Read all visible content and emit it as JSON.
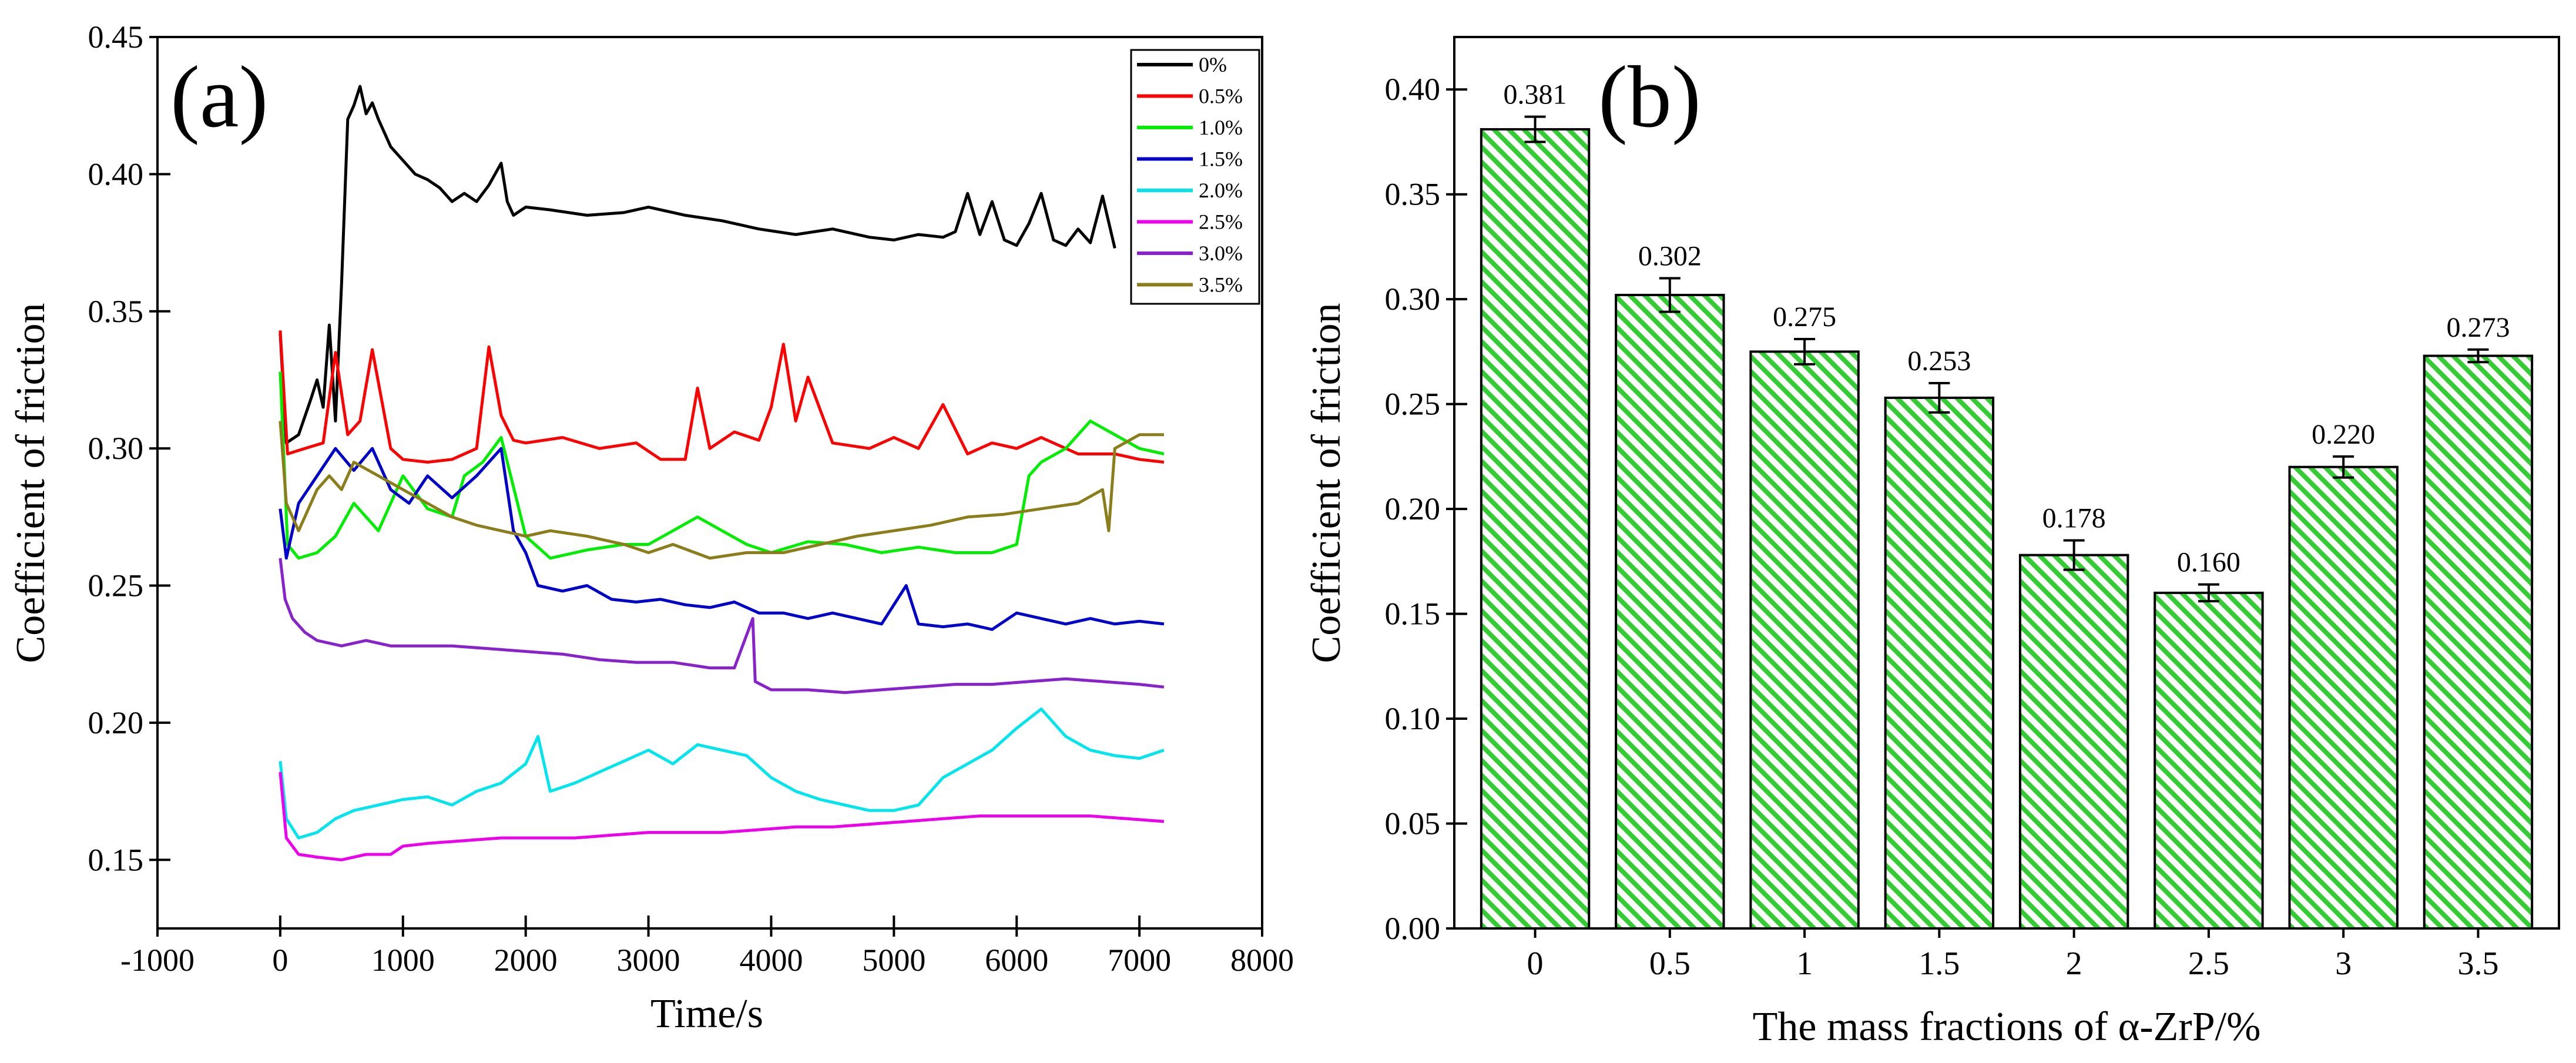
{
  "chart_data": [
    {
      "type": "line",
      "panel_label": "(a)",
      "xlabel": "Time/s",
      "ylabel": "Coefficient of friction",
      "xlim": [
        -1000,
        8000
      ],
      "ylim": [
        0.125,
        0.45
      ],
      "xticks": [
        -1000,
        0,
        1000,
        2000,
        3000,
        4000,
        5000,
        6000,
        7000,
        8000
      ],
      "xtick_labels": [
        "-1000",
        "0",
        "1000",
        "2000",
        "3000",
        "4000",
        "5000",
        "6000",
        "7000",
        "8000"
      ],
      "yticks": [
        0.15,
        0.2,
        0.25,
        0.3,
        0.35,
        0.4,
        0.45
      ],
      "ytick_labels": [
        "0.15",
        "0.20",
        "0.25",
        "0.30",
        "0.35",
        "0.40",
        "0.45"
      ],
      "legend_position": "top-right",
      "series": [
        {
          "name": "0%",
          "color": "#000000",
          "x": [
            0,
            50,
            150,
            250,
            300,
            350,
            400,
            450,
            500,
            550,
            600,
            650,
            700,
            750,
            800,
            900,
            1000,
            1100,
            1200,
            1300,
            1400,
            1500,
            1600,
            1700,
            1800,
            1850,
            1900,
            2000,
            2200,
            2500,
            2800,
            3000,
            3300,
            3600,
            3900,
            4200,
            4500,
            4800,
            5000,
            5200,
            5400,
            5500,
            5600,
            5700,
            5800,
            5900,
            6000,
            6100,
            6200,
            6300,
            6400,
            6500,
            6600,
            6700,
            6800
          ],
          "y": [
            0.342,
            0.302,
            0.305,
            0.318,
            0.325,
            0.315,
            0.345,
            0.31,
            0.36,
            0.42,
            0.425,
            0.432,
            0.422,
            0.426,
            0.42,
            0.41,
            0.405,
            0.4,
            0.398,
            0.395,
            0.39,
            0.393,
            0.39,
            0.396,
            0.404,
            0.39,
            0.385,
            0.388,
            0.387,
            0.385,
            0.386,
            0.388,
            0.385,
            0.383,
            0.38,
            0.378,
            0.38,
            0.377,
            0.376,
            0.378,
            0.377,
            0.379,
            0.393,
            0.378,
            0.39,
            0.376,
            0.374,
            0.382,
            0.393,
            0.376,
            0.374,
            0.38,
            0.375,
            0.392,
            0.373
          ]
        },
        {
          "name": "0.5%",
          "color": "#ff0000",
          "x": [
            0,
            60,
            200,
            350,
            450,
            550,
            650,
            750,
            900,
            1000,
            1200,
            1400,
            1600,
            1700,
            1800,
            1900,
            2000,
            2300,
            2600,
            2900,
            3100,
            3300,
            3400,
            3500,
            3700,
            3900,
            4000,
            4100,
            4200,
            4300,
            4500,
            4800,
            5000,
            5200,
            5400,
            5600,
            5800,
            6000,
            6200,
            6500,
            6800,
            7000,
            7200
          ],
          "y": [
            0.343,
            0.298,
            0.3,
            0.302,
            0.335,
            0.305,
            0.31,
            0.336,
            0.3,
            0.296,
            0.295,
            0.296,
            0.3,
            0.337,
            0.312,
            0.303,
            0.302,
            0.304,
            0.3,
            0.302,
            0.296,
            0.296,
            0.322,
            0.3,
            0.306,
            0.303,
            0.315,
            0.338,
            0.31,
            0.326,
            0.302,
            0.3,
            0.304,
            0.3,
            0.316,
            0.298,
            0.302,
            0.3,
            0.304,
            0.298,
            0.298,
            0.296,
            0.295
          ]
        },
        {
          "name": "1.0%",
          "color": "#00ee00",
          "x": [
            0,
            60,
            150,
            300,
            450,
            600,
            800,
            1000,
            1200,
            1400,
            1500,
            1650,
            1800,
            2000,
            2200,
            2500,
            2800,
            3000,
            3200,
            3400,
            3600,
            3800,
            4000,
            4300,
            4600,
            4900,
            5200,
            5500,
            5800,
            6000,
            6100,
            6200,
            6400,
            6600,
            6800,
            7000,
            7200
          ],
          "y": [
            0.328,
            0.265,
            0.26,
            0.262,
            0.268,
            0.28,
            0.27,
            0.29,
            0.278,
            0.275,
            0.29,
            0.295,
            0.304,
            0.268,
            0.26,
            0.263,
            0.265,
            0.265,
            0.27,
            0.275,
            0.27,
            0.265,
            0.262,
            0.266,
            0.265,
            0.262,
            0.264,
            0.262,
            0.262,
            0.265,
            0.29,
            0.295,
            0.3,
            0.31,
            0.305,
            0.3,
            0.298
          ]
        },
        {
          "name": "1.5%",
          "color": "#0000cc",
          "x": [
            0,
            50,
            150,
            300,
            450,
            600,
            750,
            900,
            1050,
            1200,
            1400,
            1600,
            1800,
            1900,
            2000,
            2100,
            2300,
            2500,
            2700,
            2900,
            3100,
            3300,
            3500,
            3700,
            3900,
            4100,
            4300,
            4500,
            4700,
            4900,
            5100,
            5200,
            5400,
            5600,
            5800,
            6000,
            6200,
            6400,
            6600,
            6800,
            7000,
            7200
          ],
          "y": [
            0.278,
            0.26,
            0.28,
            0.29,
            0.3,
            0.292,
            0.3,
            0.285,
            0.28,
            0.29,
            0.282,
            0.29,
            0.3,
            0.27,
            0.262,
            0.25,
            0.248,
            0.25,
            0.245,
            0.244,
            0.245,
            0.243,
            0.242,
            0.244,
            0.24,
            0.24,
            0.238,
            0.24,
            0.238,
            0.236,
            0.25,
            0.236,
            0.235,
            0.236,
            0.234,
            0.24,
            0.238,
            0.236,
            0.238,
            0.236,
            0.237,
            0.236
          ]
        },
        {
          "name": "2.0%",
          "color": "#00e5ee",
          "x": [
            0,
            50,
            150,
            300,
            450,
            600,
            800,
            1000,
            1200,
            1400,
            1600,
            1800,
            2000,
            2100,
            2200,
            2400,
            2600,
            2800,
            3000,
            3200,
            3400,
            3600,
            3800,
            4000,
            4200,
            4400,
            4600,
            4800,
            5000,
            5200,
            5400,
            5600,
            5800,
            6000,
            6200,
            6400,
            6600,
            6800,
            7000,
            7200
          ],
          "y": [
            0.186,
            0.165,
            0.158,
            0.16,
            0.165,
            0.168,
            0.17,
            0.172,
            0.173,
            0.17,
            0.175,
            0.178,
            0.185,
            0.195,
            0.175,
            0.178,
            0.182,
            0.186,
            0.19,
            0.185,
            0.192,
            0.19,
            0.188,
            0.18,
            0.175,
            0.172,
            0.17,
            0.168,
            0.168,
            0.17,
            0.18,
            0.185,
            0.19,
            0.198,
            0.205,
            0.195,
            0.19,
            0.188,
            0.187,
            0.19
          ]
        },
        {
          "name": "2.5%",
          "color": "#ee00ee",
          "x": [
            0,
            50,
            150,
            300,
            500,
            700,
            900,
            1000,
            1200,
            1500,
            1800,
            2100,
            2400,
            2700,
            3000,
            3300,
            3600,
            3900,
            4200,
            4500,
            4800,
            5100,
            5400,
            5700,
            6000,
            6300,
            6600,
            6900,
            7200
          ],
          "y": [
            0.182,
            0.158,
            0.152,
            0.151,
            0.15,
            0.152,
            0.152,
            0.155,
            0.156,
            0.157,
            0.158,
            0.158,
            0.158,
            0.159,
            0.16,
            0.16,
            0.16,
            0.161,
            0.162,
            0.162,
            0.163,
            0.164,
            0.165,
            0.166,
            0.166,
            0.166,
            0.166,
            0.165,
            0.164
          ]
        },
        {
          "name": "3.0%",
          "color": "#8822cc",
          "x": [
            0,
            40,
            100,
            200,
            300,
            500,
            700,
            900,
            1100,
            1400,
            1700,
            2000,
            2300,
            2600,
            2900,
            3200,
            3500,
            3700,
            3850,
            3870,
            4000,
            4300,
            4600,
            4900,
            5200,
            5500,
            5800,
            6100,
            6400,
            6700,
            7000,
            7200
          ],
          "y": [
            0.26,
            0.245,
            0.238,
            0.233,
            0.23,
            0.228,
            0.23,
            0.228,
            0.228,
            0.228,
            0.227,
            0.226,
            0.225,
            0.223,
            0.222,
            0.222,
            0.22,
            0.22,
            0.238,
            0.215,
            0.212,
            0.212,
            0.211,
            0.212,
            0.213,
            0.214,
            0.214,
            0.215,
            0.216,
            0.215,
            0.214,
            0.213
          ]
        },
        {
          "name": "3.5%",
          "color": "#8b7d1a",
          "x": [
            0,
            50,
            150,
            300,
            400,
            500,
            600,
            800,
            1000,
            1200,
            1400,
            1600,
            1800,
            2000,
            2200,
            2500,
            2800,
            3000,
            3200,
            3500,
            3800,
            4100,
            4400,
            4700,
            5000,
            5300,
            5600,
            5900,
            6200,
            6500,
            6700,
            6750,
            6800,
            7000,
            7200
          ],
          "y": [
            0.31,
            0.28,
            0.27,
            0.285,
            0.29,
            0.285,
            0.295,
            0.29,
            0.285,
            0.28,
            0.275,
            0.272,
            0.27,
            0.268,
            0.27,
            0.268,
            0.265,
            0.262,
            0.265,
            0.26,
            0.262,
            0.262,
            0.265,
            0.268,
            0.27,
            0.272,
            0.275,
            0.276,
            0.278,
            0.28,
            0.285,
            0.27,
            0.3,
            0.305,
            0.305
          ]
        }
      ]
    },
    {
      "type": "bar",
      "panel_label": "(b)",
      "xlabel": "The mass fractions of α-ZrP/%",
      "ylabel": "Coefficient of friction",
      "categories": [
        "0",
        "0.5",
        "1",
        "1.5",
        "2",
        "2.5",
        "3",
        "3.5"
      ],
      "values": [
        0.381,
        0.302,
        0.275,
        0.253,
        0.178,
        0.16,
        0.22,
        0.273
      ],
      "value_labels": [
        "0.381",
        "0.302",
        "0.275",
        "0.253",
        "0.178",
        "0.160",
        "0.220",
        "0.273"
      ],
      "errors": [
        0.006,
        0.008,
        0.006,
        0.007,
        0.007,
        0.004,
        0.005,
        0.003
      ],
      "ylim": [
        0,
        0.425
      ],
      "yticks": [
        0,
        0.05,
        0.1,
        0.15,
        0.2,
        0.25,
        0.3,
        0.35,
        0.4
      ],
      "ytick_labels": [
        "0.00",
        "0.05",
        "0.10",
        "0.15",
        "0.20",
        "0.25",
        "0.30",
        "0.35",
        "0.40"
      ],
      "bar_color": "#33cc33",
      "hatch": "diagonal"
    }
  ]
}
